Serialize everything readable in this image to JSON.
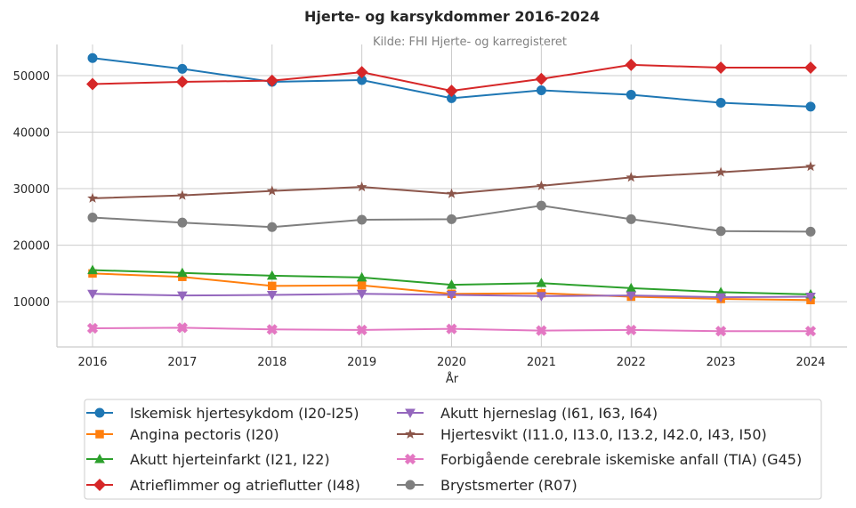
{
  "chart_data": {
    "type": "line",
    "title": "Hjerte- og karsykdommer 2016-2024",
    "subtitle": "Kilde: FHI Hjerte- og karregisteret",
    "xlabel": "År",
    "ylabel": "",
    "x": [
      "2016",
      "2017",
      "2018",
      "2019",
      "2020",
      "2021",
      "2022",
      "2023",
      "2024"
    ],
    "ylim": [
      2000,
      55500
    ],
    "yticks": [
      10000,
      20000,
      30000,
      40000,
      50000
    ],
    "grid": true,
    "legend_position": "bottom",
    "legend_columns": 2,
    "series": [
      {
        "name": "Iskemisk hjertesykdom (I20-I25)",
        "color": "#1f77b4",
        "marker": "circle",
        "values": [
          53100,
          51200,
          48900,
          49200,
          46000,
          47400,
          46600,
          45200,
          44500
        ]
      },
      {
        "name": "Angina pectoris (I20)",
        "color": "#ff7f0e",
        "marker": "square",
        "values": [
          15000,
          14400,
          12800,
          12900,
          11400,
          11500,
          10900,
          10500,
          10300
        ]
      },
      {
        "name": "Akutt hjerteinfarkt (I21, I22)",
        "color": "#2ca02c",
        "marker": "triangle-up",
        "values": [
          15600,
          15100,
          14600,
          14300,
          13000,
          13300,
          12400,
          11700,
          11300
        ]
      },
      {
        "name": "Atrieflimmer og atrieflutter (I48)",
        "color": "#d62728",
        "marker": "diamond",
        "values": [
          48500,
          48900,
          49100,
          50600,
          47300,
          49400,
          51900,
          51400,
          51400
        ]
      },
      {
        "name": "Akutt hjerneslag (I61, I63, I64)",
        "color": "#9467bd",
        "marker": "triangle-down",
        "values": [
          11400,
          11100,
          11200,
          11400,
          11200,
          11000,
          11100,
          10800,
          10900
        ]
      },
      {
        "name": "Hjertesvikt (I11.0, I13.0, I13.2, I42.0, I43, I50)",
        "color": "#8c564b",
        "marker": "star",
        "values": [
          28300,
          28800,
          29600,
          30300,
          29100,
          30500,
          32000,
          32900,
          33900
        ]
      },
      {
        "name": "Forbigående cerebrale iskemiske anfall (TIA) (G45)",
        "color": "#e377c2",
        "marker": "cross",
        "values": [
          5300,
          5400,
          5100,
          5000,
          5200,
          4900,
          5000,
          4800,
          4800
        ]
      },
      {
        "name": "Brystsmerter (R07)",
        "color": "#7f7f7f",
        "marker": "circle",
        "values": [
          24900,
          24000,
          23200,
          24500,
          24600,
          27000,
          24600,
          22500,
          22400
        ]
      }
    ]
  }
}
